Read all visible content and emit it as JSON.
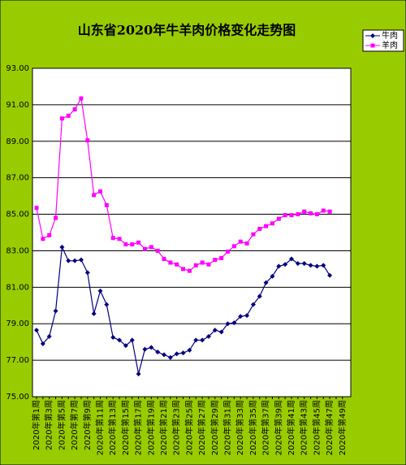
{
  "chart_data": {
    "type": "line",
    "title": "山东省2020年牛羊肉价格变化走势图",
    "categories": [
      "2020年第1周",
      null,
      "2020年第3周",
      null,
      "2020年第5周",
      null,
      "2020年第7周",
      null,
      "2020年第9周",
      null,
      "2020年第11周",
      null,
      "2020年第13周",
      null,
      "2020年第15周",
      null,
      "2020年第17周",
      null,
      "2020年第19周",
      null,
      "2020年第21周",
      null,
      "2020年第23周",
      null,
      "2020年第25周",
      null,
      "2020年第27周",
      null,
      "2020年第29周",
      null,
      "2020年第31周",
      null,
      "2020年第33周",
      null,
      "2020年第35周",
      null,
      "2020年第37周",
      null,
      "2020年第39周",
      null,
      "2020年第41周",
      null,
      "2020年第43周",
      null,
      "2020年第45周",
      null,
      "2020年第47周",
      null,
      "2020年第49周"
    ],
    "series": [
      {
        "name": "牛肉",
        "color": "#000080",
        "marker": "diamond",
        "values": [
          78.65,
          77.9,
          78.3,
          79.7,
          83.2,
          82.45,
          82.45,
          82.5,
          81.8,
          79.55,
          80.8,
          80.05,
          78.25,
          78.1,
          77.8,
          78.1,
          76.25,
          77.6,
          77.7,
          77.45,
          77.3,
          77.15,
          77.35,
          77.4,
          77.55,
          78.1,
          78.1,
          78.3,
          78.65,
          78.55,
          79.0,
          79.05,
          79.4,
          79.45,
          80.05,
          80.5,
          81.25,
          81.6,
          82.15,
          82.25,
          82.55,
          82.3,
          82.3,
          82.2,
          82.15,
          82.2,
          81.65,
          null,
          null
        ]
      },
      {
        "name": "羊肉",
        "color": "#ff00ff",
        "marker": "square",
        "values": [
          85.35,
          83.65,
          83.85,
          84.8,
          90.25,
          90.4,
          90.75,
          91.35,
          89.05,
          86.05,
          86.25,
          85.5,
          83.7,
          83.65,
          83.35,
          83.35,
          83.45,
          83.1,
          83.2,
          83.0,
          82.55,
          82.35,
          82.25,
          82.0,
          81.9,
          82.2,
          82.35,
          82.25,
          82.5,
          82.6,
          82.95,
          83.25,
          83.5,
          83.4,
          83.9,
          84.2,
          84.35,
          84.5,
          84.75,
          84.95,
          84.95,
          85.0,
          85.15,
          85.05,
          85.0,
          85.2,
          85.15,
          null,
          null
        ]
      }
    ],
    "ylim": [
      75,
      93
    ],
    "yticks": [
      {
        "value": 75,
        "label": "75.00"
      },
      {
        "value": 77,
        "label": "77.00"
      },
      {
        "value": 79,
        "label": "79.00"
      },
      {
        "value": 81,
        "label": "81.00"
      },
      {
        "value": 83,
        "label": "83.00"
      },
      {
        "value": 85,
        "label": "85.00"
      },
      {
        "value": 87,
        "label": "87.00"
      },
      {
        "value": 89,
        "label": "89.00"
      },
      {
        "value": 91,
        "label": "91.00"
      },
      {
        "value": 93,
        "label": "93.00"
      }
    ],
    "grid": true,
    "legend": "top-right",
    "background": "#99cc00"
  }
}
